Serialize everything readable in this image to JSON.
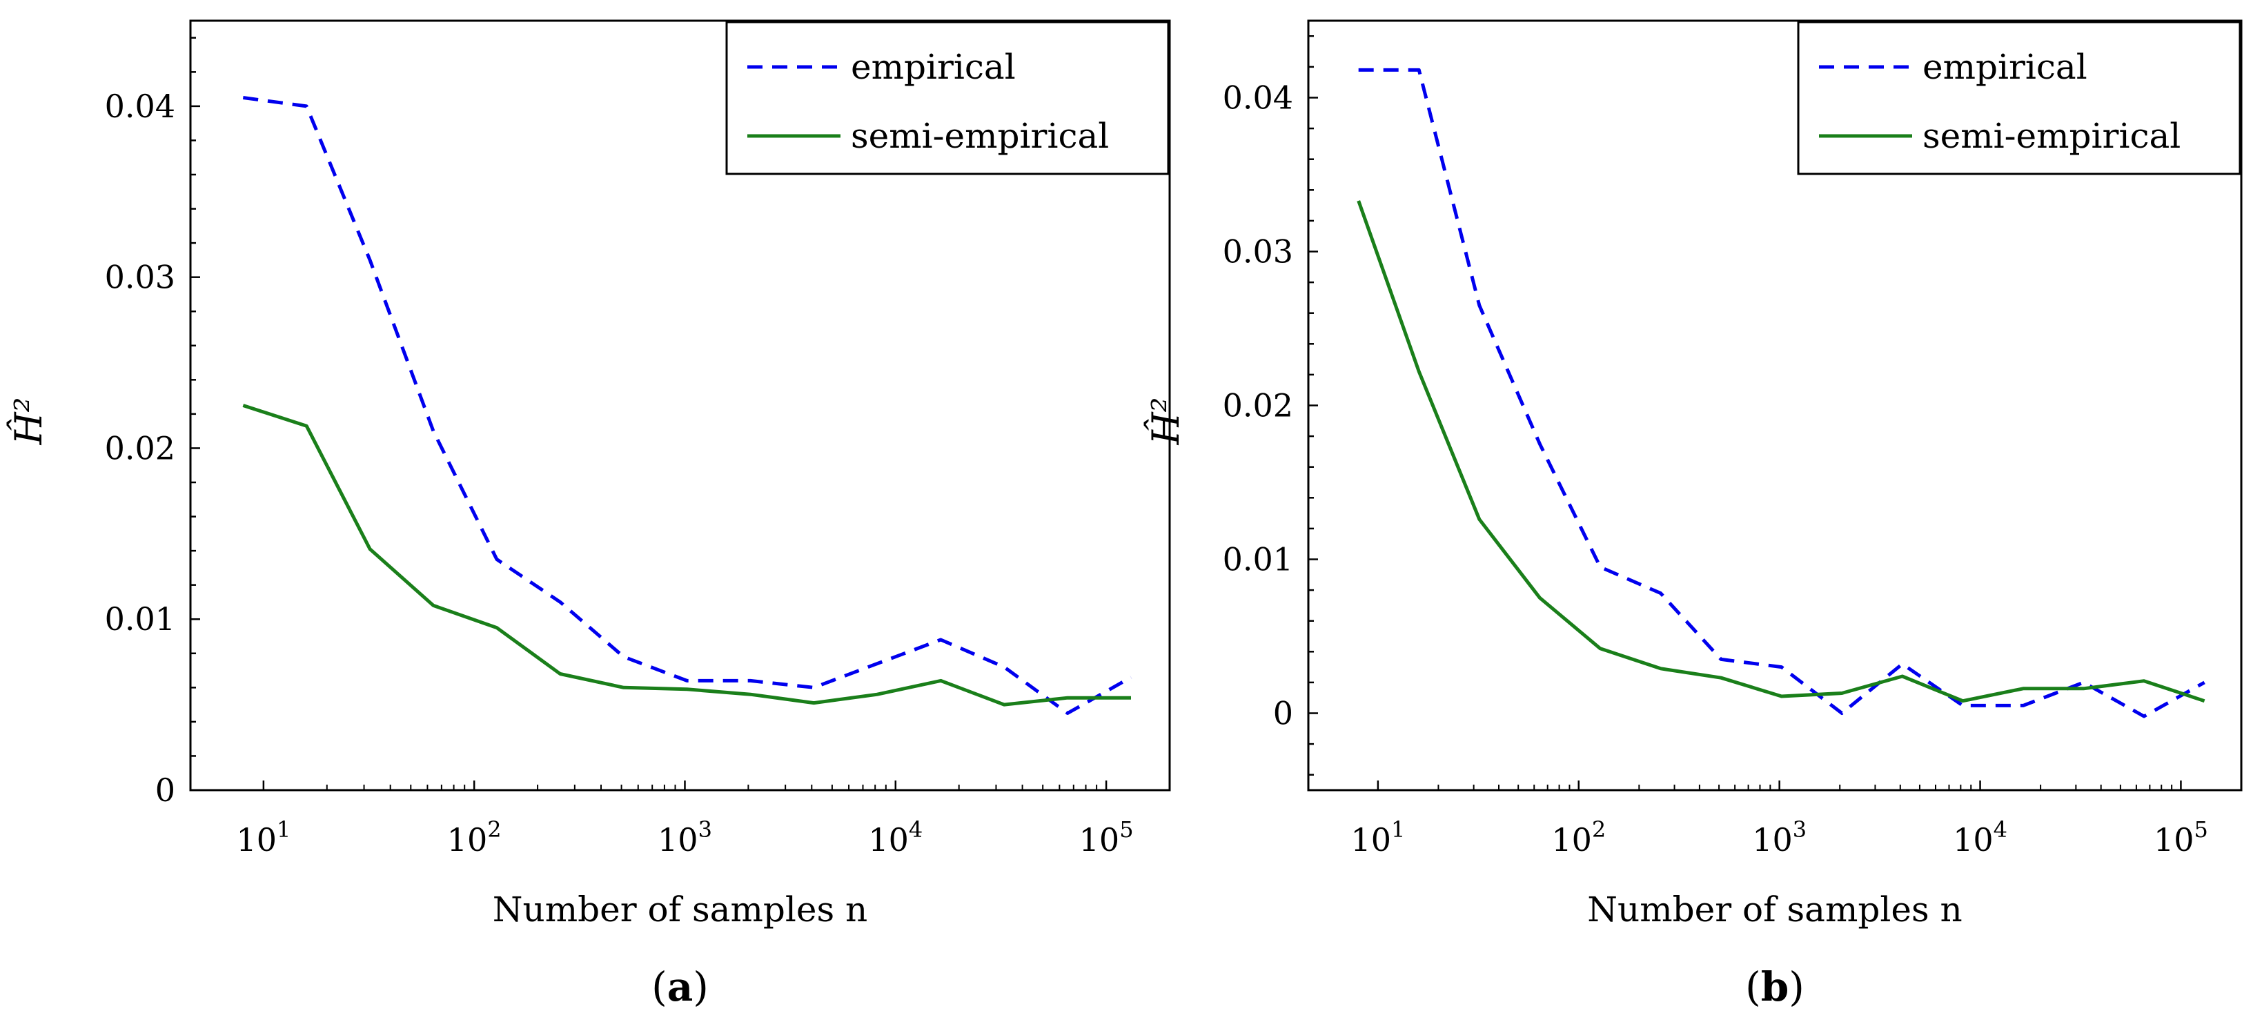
{
  "chart_data": [
    {
      "type": "line",
      "panel": "(a)",
      "panel_letter": "a",
      "xscale": "log",
      "xlabel": "Number of samples n",
      "ylabel": "Ĥ²",
      "xlim": [
        4.5,
        200000
      ],
      "ylim": [
        0,
        0.045
      ],
      "ytick_values": [
        0,
        0.01,
        0.02,
        0.03,
        0.04
      ],
      "ytick_labels": [
        "0",
        "0.01",
        "0.02",
        "0.03",
        "0.04"
      ],
      "xtick_values": [
        10,
        100,
        1000,
        10000,
        100000
      ],
      "xtick_labels": [
        {
          "base": "10",
          "exp": "1"
        },
        {
          "base": "10",
          "exp": "2"
        },
        {
          "base": "10",
          "exp": "3"
        },
        {
          "base": "10",
          "exp": "4"
        },
        {
          "base": "10",
          "exp": "5"
        }
      ],
      "legend_position": "top-right",
      "series": [
        {
          "name": "empirical",
          "color": "#0000ee",
          "style": "dashed",
          "x": [
            8,
            16,
            32,
            64,
            128,
            256,
            512,
            1024,
            2048,
            4096,
            8192,
            16384,
            32768,
            65536,
            131072
          ],
          "y": [
            0.0405,
            0.04,
            0.031,
            0.021,
            0.0135,
            0.011,
            0.0078,
            0.0064,
            0.0064,
            0.006,
            0.0074,
            0.0088,
            0.0072,
            0.0045,
            0.0066
          ]
        },
        {
          "name": "semi-empirical",
          "color": "#1a7f1a",
          "style": "solid",
          "x": [
            8,
            16,
            32,
            64,
            128,
            256,
            512,
            1024,
            2048,
            4096,
            8192,
            16384,
            32768,
            65536,
            131072
          ],
          "y": [
            0.0225,
            0.0213,
            0.0141,
            0.0108,
            0.0095,
            0.0068,
            0.006,
            0.0059,
            0.0056,
            0.0051,
            0.0056,
            0.0064,
            0.005,
            0.0054,
            0.0054
          ]
        }
      ]
    },
    {
      "type": "line",
      "panel": "(b)",
      "panel_letter": "b",
      "xscale": "log",
      "xlabel": "Number of samples n",
      "ylabel": "Ĥ²",
      "xlim": [
        4.5,
        200000
      ],
      "ylim": [
        -0.005,
        0.045
      ],
      "ytick_values": [
        0,
        0.01,
        0.02,
        0.03,
        0.04
      ],
      "ytick_labels": [
        "0",
        "0.01",
        "0.02",
        "0.03",
        "0.04"
      ],
      "xtick_values": [
        10,
        100,
        1000,
        10000,
        100000
      ],
      "xtick_labels": [
        {
          "base": "10",
          "exp": "1"
        },
        {
          "base": "10",
          "exp": "2"
        },
        {
          "base": "10",
          "exp": "3"
        },
        {
          "base": "10",
          "exp": "4"
        },
        {
          "base": "10",
          "exp": "5"
        }
      ],
      "legend_position": "top-right",
      "series": [
        {
          "name": "empirical",
          "color": "#0000ee",
          "style": "dashed",
          "x": [
            8,
            16,
            32,
            64,
            128,
            256,
            512,
            1024,
            2048,
            4096,
            8192,
            16384,
            32768,
            65536,
            131072
          ],
          "y": [
            0.0418,
            0.0418,
            0.0265,
            0.0175,
            0.0095,
            0.0078,
            0.0035,
            0.003,
            0.0,
            0.0032,
            0.0005,
            0.0005,
            0.002,
            -0.0002,
            0.002
          ]
        },
        {
          "name": "semi-empirical",
          "color": "#1a7f1a",
          "style": "solid",
          "x": [
            8,
            16,
            32,
            64,
            128,
            256,
            512,
            1024,
            2048,
            4096,
            8192,
            16384,
            32768,
            65536,
            131072
          ],
          "y": [
            0.0333,
            0.0222,
            0.0126,
            0.0075,
            0.0042,
            0.0029,
            0.0023,
            0.0011,
            0.0013,
            0.0024,
            0.0008,
            0.0016,
            0.0016,
            0.0021,
            0.0008
          ]
        }
      ]
    }
  ]
}
